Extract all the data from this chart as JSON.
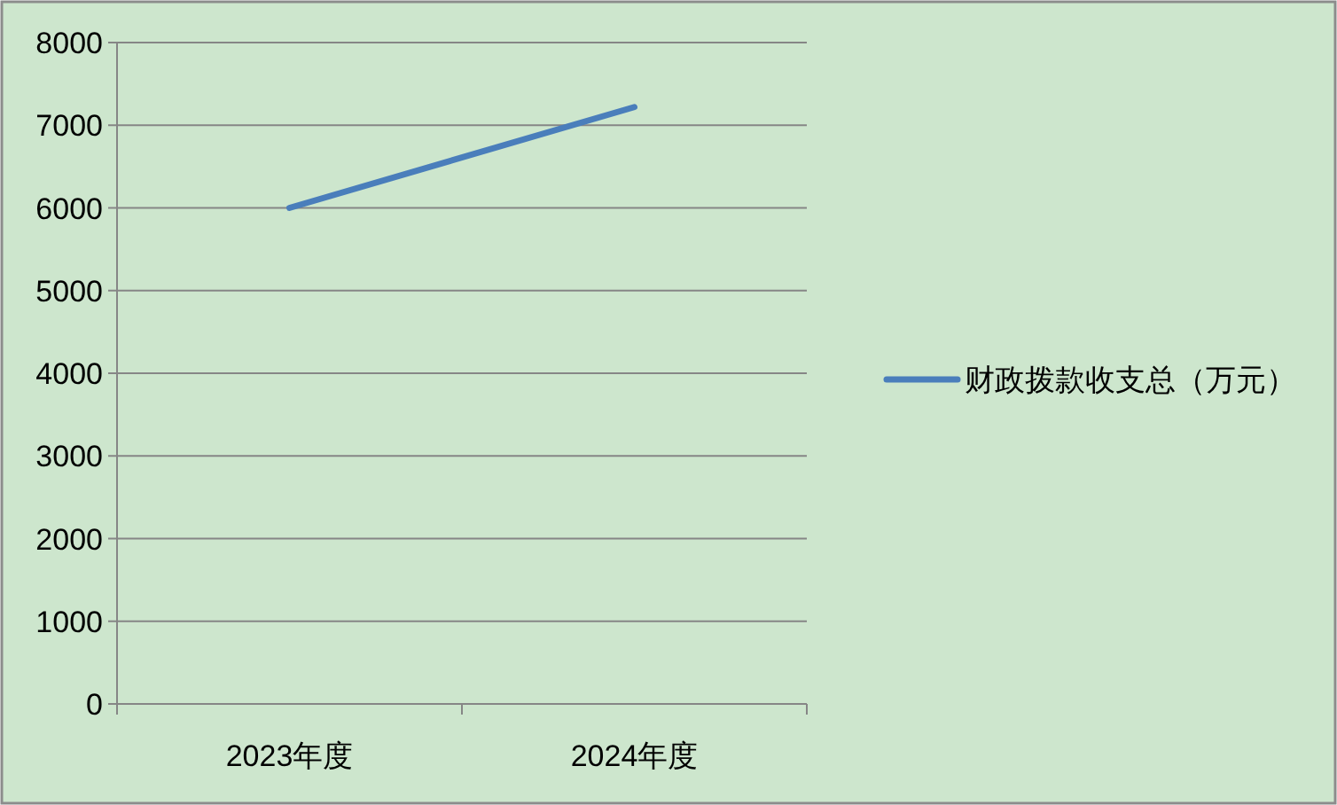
{
  "chart_data": {
    "type": "line",
    "categories": [
      "2023年度",
      "2024年度"
    ],
    "series": [
      {
        "name": "财政拨款收支总（万元）",
        "color": "#4a7ebb",
        "values": [
          6000,
          7220
        ]
      }
    ],
    "ylim": [
      0,
      8000
    ],
    "yticks": [
      0,
      1000,
      2000,
      3000,
      4000,
      5000,
      6000,
      7000,
      8000
    ],
    "grid": "y",
    "legend": "right"
  }
}
